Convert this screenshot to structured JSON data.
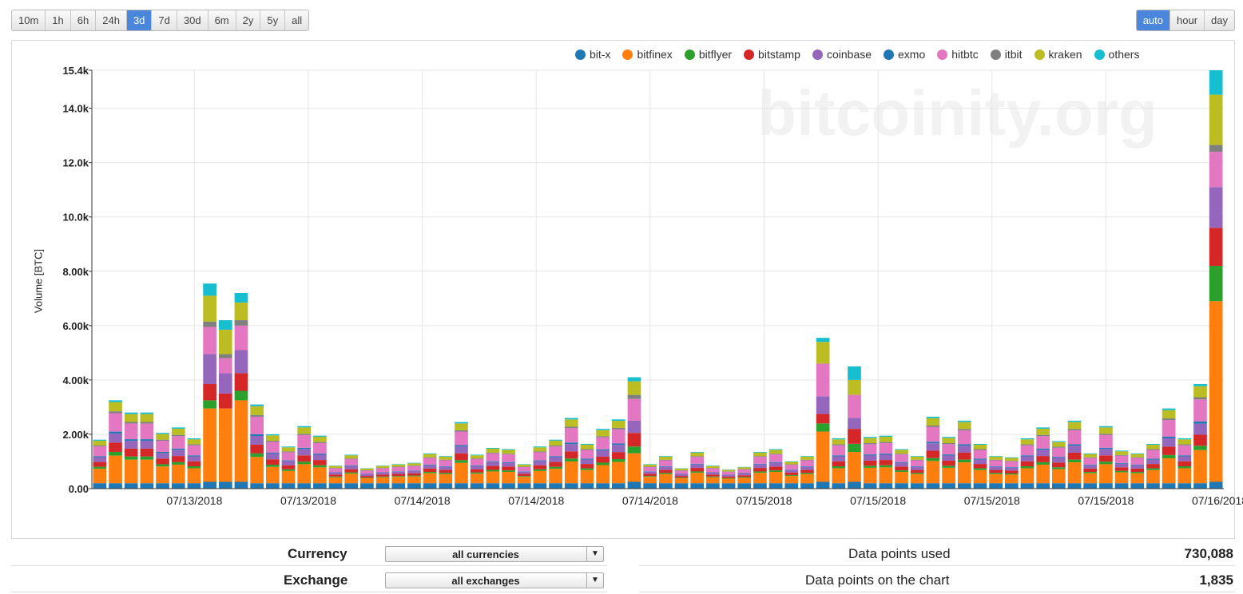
{
  "range_buttons": [
    {
      "label": "10m",
      "active": false
    },
    {
      "label": "1h",
      "active": false
    },
    {
      "label": "6h",
      "active": false
    },
    {
      "label": "24h",
      "active": false
    },
    {
      "label": "3d",
      "active": true
    },
    {
      "label": "7d",
      "active": false
    },
    {
      "label": "30d",
      "active": false
    },
    {
      "label": "6m",
      "active": false
    },
    {
      "label": "2y",
      "active": false
    },
    {
      "label": "5y",
      "active": false
    },
    {
      "label": "all",
      "active": false
    }
  ],
  "granularity_buttons": [
    {
      "label": "auto",
      "active": true
    },
    {
      "label": "hour",
      "active": false
    },
    {
      "label": "day",
      "active": false
    }
  ],
  "watermark": "bitcoinity.org",
  "controls": {
    "currency_label": "Currency",
    "currency_value": "all currencies",
    "exchange_label": "Exchange",
    "exchange_value": "all exchanges"
  },
  "stats": {
    "used_label": "Data points used",
    "used_value": "730,088",
    "chart_label": "Data points on the chart",
    "chart_value": "1,835"
  },
  "chart_data": {
    "type": "bar",
    "stacked": true,
    "ylabel": "Volume [BTC]",
    "ylim": [
      0,
      15400
    ],
    "yticks": [
      {
        "value": 0,
        "label": "0.00"
      },
      {
        "value": 2000,
        "label": "2.00k"
      },
      {
        "value": 4000,
        "label": "4.00k"
      },
      {
        "value": 6000,
        "label": "6.00k"
      },
      {
        "value": 8000,
        "label": "8.00k"
      },
      {
        "value": 10000,
        "label": "10.0k"
      },
      {
        "value": 12000,
        "label": "12.0k"
      },
      {
        "value": 14000,
        "label": "14.0k"
      },
      {
        "value": 15400,
        "label": "15.4k"
      }
    ],
    "xticks": [
      {
        "index": 4.5,
        "label": "07/13/2018"
      },
      {
        "index": 9.5,
        "label": "07/13/2018"
      },
      {
        "index": 14.5,
        "label": "07/14/2018"
      },
      {
        "index": 19.5,
        "label": "07/14/2018"
      },
      {
        "index": 24.5,
        "label": "07/14/2018"
      },
      {
        "index": 29.5,
        "label": "07/15/2018"
      },
      {
        "index": 34.5,
        "label": "07/15/2018"
      },
      {
        "index": 39.5,
        "label": "07/15/2018"
      },
      {
        "index": 44.5,
        "label": "07/15/2018"
      },
      {
        "index": 49.5,
        "label": "07/16/2018"
      }
    ],
    "grid": true,
    "legend_position": "top-right",
    "series": [
      {
        "name": "bit-x",
        "color": "#1f77b4",
        "values": [
          200,
          200,
          200,
          200,
          200,
          200,
          200,
          200,
          200,
          200,
          200,
          200,
          200,
          200,
          200,
          200,
          200,
          200,
          200,
          200,
          200,
          200,
          200,
          200,
          200,
          200,
          200,
          200,
          200,
          200,
          200,
          200,
          200,
          200,
          200,
          200,
          200,
          200,
          200,
          200,
          200,
          200,
          200,
          200,
          200,
          200,
          200,
          200,
          200,
          200,
          200,
          200,
          200,
          200,
          200,
          200,
          200,
          200,
          200,
          200,
          200,
          200,
          200,
          200,
          200,
          200,
          200,
          200,
          200,
          200,
          200,
          200,
          200,
          200,
          200,
          200,
          200,
          200,
          200,
          200,
          200,
          200,
          200,
          200,
          200,
          200,
          200,
          200,
          200,
          200,
          200,
          200,
          200,
          200,
          200,
          200,
          200,
          200,
          200,
          200,
          200,
          200,
          200,
          200,
          200,
          200,
          200,
          200,
          200,
          200,
          200,
          200,
          200,
          200,
          200,
          200,
          200,
          200,
          200,
          200,
          200,
          200,
          200,
          200,
          200,
          200,
          200,
          200,
          200,
          200,
          200,
          200,
          200,
          200,
          200,
          200,
          200,
          200,
          200,
          200,
          200,
          200,
          200,
          200,
          200,
          200,
          200,
          200,
          200,
          200
        ]
      },
      {
        "name": "bitfinex",
        "color": "#ff7f0e",
        "values": []
      },
      {
        "name": "bitflyer",
        "color": "#2ca02c",
        "values": []
      },
      {
        "name": "bitstamp",
        "color": "#d62728",
        "values": []
      },
      {
        "name": "coinbase",
        "color": "#9467bd",
        "values": []
      },
      {
        "name": "exmo",
        "color": "#1f77b4",
        "values": []
      },
      {
        "name": "hitbtc",
        "color": "#e377c2",
        "values": []
      },
      {
        "name": "itbit",
        "color": "#7f7f7f",
        "values": []
      },
      {
        "name": "kraken",
        "color": "#bcbd22",
        "values": []
      },
      {
        "name": "others",
        "color": "#17becf",
        "values": []
      }
    ]
  }
}
